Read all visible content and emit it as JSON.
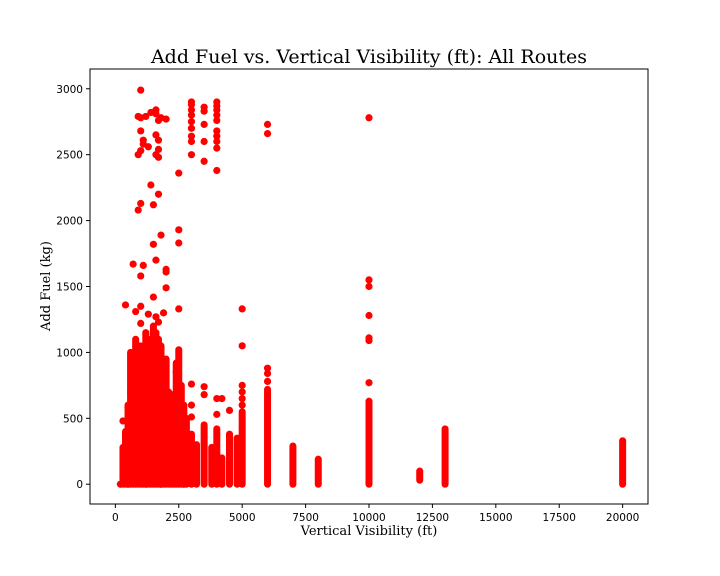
{
  "chart_data": {
    "type": "scatter",
    "title": "Add Fuel vs. Vertical Visibility (ft): All Routes",
    "xlabel": "Vertical Visibility (ft)",
    "ylabel": "Add Fuel (kg)",
    "xlim": [
      -1000,
      21000
    ],
    "ylim": [
      -150,
      3150
    ],
    "xticks": [
      0,
      2500,
      5000,
      7500,
      10000,
      12500,
      15000,
      17500,
      20000
    ],
    "yticks": [
      0,
      500,
      1000,
      1500,
      2000,
      2500,
      3000
    ],
    "grid": false,
    "legend": "none",
    "marker_color": "#ff0000",
    "series": [
      {
        "values": [
          [
            1000,
            2990
          ],
          [
            900,
            2790
          ],
          [
            1000,
            2780
          ],
          [
            1200,
            2790
          ],
          [
            1400,
            2820
          ],
          [
            1600,
            2840
          ],
          [
            1600,
            2810
          ],
          [
            1700,
            2760
          ],
          [
            1800,
            2780
          ],
          [
            2000,
            2770
          ],
          [
            1000,
            2680
          ],
          [
            1100,
            2610
          ],
          [
            1100,
            2580
          ],
          [
            1300,
            2560
          ],
          [
            1600,
            2650
          ],
          [
            1700,
            2610
          ],
          [
            1700,
            2540
          ],
          [
            1600,
            2500
          ],
          [
            1700,
            2480
          ],
          [
            900,
            2500
          ],
          [
            1000,
            2530
          ],
          [
            1400,
            2270
          ],
          [
            1700,
            2200
          ],
          [
            1500,
            2120
          ],
          [
            1000,
            2130
          ],
          [
            900,
            2080
          ],
          [
            2500,
            2360
          ],
          [
            2500,
            1930
          ],
          [
            2500,
            1830
          ],
          [
            1500,
            1820
          ],
          [
            1800,
            1890
          ],
          [
            700,
            1670
          ],
          [
            1100,
            1660
          ],
          [
            1600,
            1700
          ],
          [
            2000,
            1630
          ],
          [
            2000,
            1610
          ],
          [
            1000,
            1580
          ],
          [
            2000,
            1490
          ],
          [
            1500,
            1420
          ],
          [
            1000,
            1350
          ],
          [
            400,
            1360
          ],
          [
            1300,
            1290
          ],
          [
            1600,
            1270
          ],
          [
            1900,
            1300
          ],
          [
            2500,
            1330
          ],
          [
            1700,
            1230
          ],
          [
            800,
            1310
          ],
          [
            1000,
            1220
          ],
          [
            3000,
            2900
          ],
          [
            3000,
            2880
          ],
          [
            3000,
            2840
          ],
          [
            3000,
            2800
          ],
          [
            3000,
            2750
          ],
          [
            3000,
            2700
          ],
          [
            3000,
            2640
          ],
          [
            3000,
            2600
          ],
          [
            3000,
            2500
          ],
          [
            3500,
            2860
          ],
          [
            3500,
            2830
          ],
          [
            3500,
            2730
          ],
          [
            3500,
            2600
          ],
          [
            3500,
            2450
          ],
          [
            4000,
            2900
          ],
          [
            4000,
            2870
          ],
          [
            4000,
            2840
          ],
          [
            4000,
            2800
          ],
          [
            4000,
            2760
          ],
          [
            4000,
            2680
          ],
          [
            4000,
            2640
          ],
          [
            4000,
            2600
          ],
          [
            4000,
            2550
          ],
          [
            4000,
            2380
          ],
          [
            3000,
            760
          ],
          [
            3000,
            600
          ],
          [
            3000,
            510
          ],
          [
            3500,
            740
          ],
          [
            3500,
            680
          ],
          [
            4000,
            650
          ],
          [
            4200,
            650
          ],
          [
            4500,
            560
          ],
          [
            4000,
            530
          ],
          [
            5000,
            1330
          ],
          [
            5000,
            1050
          ],
          [
            5000,
            750
          ],
          [
            5000,
            700
          ],
          [
            5000,
            650
          ],
          [
            5000,
            600
          ],
          [
            6000,
            2730
          ],
          [
            6000,
            2660
          ],
          [
            6000,
            880
          ],
          [
            6000,
            840
          ],
          [
            6000,
            780
          ],
          [
            10000,
            2780
          ],
          [
            10000,
            1550
          ],
          [
            10000,
            1500
          ],
          [
            10000,
            1280
          ],
          [
            10000,
            1110
          ],
          [
            10000,
            1090
          ],
          [
            10000,
            770
          ],
          [
            1500,
            1000
          ],
          [
            1200,
            950
          ],
          [
            2000,
            900
          ],
          [
            2400,
            850
          ],
          [
            800,
            800
          ],
          [
            1800,
            760
          ],
          [
            600,
            700
          ],
          [
            2200,
            680
          ],
          [
            1000,
            640
          ],
          [
            1400,
            600
          ],
          [
            500,
            580
          ],
          [
            2600,
            560
          ],
          [
            300,
            480
          ],
          [
            900,
            520
          ],
          [
            1700,
            500
          ],
          [
            2100,
            470
          ],
          [
            1300,
            430
          ],
          [
            2800,
            400
          ],
          [
            700,
            380
          ],
          [
            1100,
            340
          ],
          [
            1900,
            320
          ],
          [
            400,
            300
          ],
          [
            2300,
            280
          ],
          [
            1500,
            260
          ],
          [
            800,
            230
          ],
          [
            1200,
            200
          ],
          [
            2000,
            180
          ],
          [
            600,
            150
          ],
          [
            2500,
            120
          ],
          [
            1000,
            100
          ],
          [
            1600,
            80
          ],
          [
            300,
            60
          ],
          [
            2200,
            40
          ],
          [
            900,
            20
          ],
          [
            1400,
            10
          ],
          [
            200,
            0
          ],
          [
            2700,
            0
          ],
          [
            1800,
            0
          ],
          [
            500,
            0
          ],
          [
            1200,
            0
          ]
        ]
      }
    ],
    "vertical_ranges": [
      [
        600,
        0,
        1000
      ],
      [
        800,
        0,
        1100
      ],
      [
        1000,
        0,
        1050
      ],
      [
        1100,
        0,
        900
      ],
      [
        1200,
        0,
        1150
      ],
      [
        1300,
        0,
        1100
      ],
      [
        1400,
        0,
        1050
      ],
      [
        1500,
        0,
        1200
      ],
      [
        1600,
        0,
        1150
      ],
      [
        1700,
        0,
        1100
      ],
      [
        1800,
        0,
        1050
      ],
      [
        1900,
        0,
        900
      ],
      [
        2000,
        0,
        950
      ],
      [
        2100,
        0,
        700
      ],
      [
        2200,
        0,
        650
      ],
      [
        2300,
        0,
        600
      ],
      [
        2400,
        0,
        920
      ],
      [
        2500,
        0,
        1020
      ],
      [
        2600,
        0,
        750
      ],
      [
        2700,
        0,
        600
      ],
      [
        2800,
        0,
        500
      ],
      [
        300,
        0,
        280
      ],
      [
        400,
        0,
        400
      ],
      [
        500,
        0,
        600
      ],
      [
        700,
        0,
        750
      ],
      [
        900,
        0,
        850
      ],
      [
        3000,
        0,
        380
      ],
      [
        3200,
        0,
        300
      ],
      [
        3500,
        0,
        450
      ],
      [
        3800,
        0,
        280
      ],
      [
        4000,
        0,
        420
      ],
      [
        4200,
        0,
        200
      ],
      [
        4500,
        0,
        380
      ],
      [
        4800,
        0,
        350
      ],
      [
        5000,
        0,
        550
      ],
      [
        6000,
        0,
        720
      ],
      [
        7000,
        0,
        290
      ],
      [
        8000,
        0,
        190
      ],
      [
        10000,
        0,
        630
      ],
      [
        12000,
        30,
        100
      ],
      [
        13000,
        0,
        420
      ],
      [
        20000,
        0,
        330
      ]
    ]
  }
}
